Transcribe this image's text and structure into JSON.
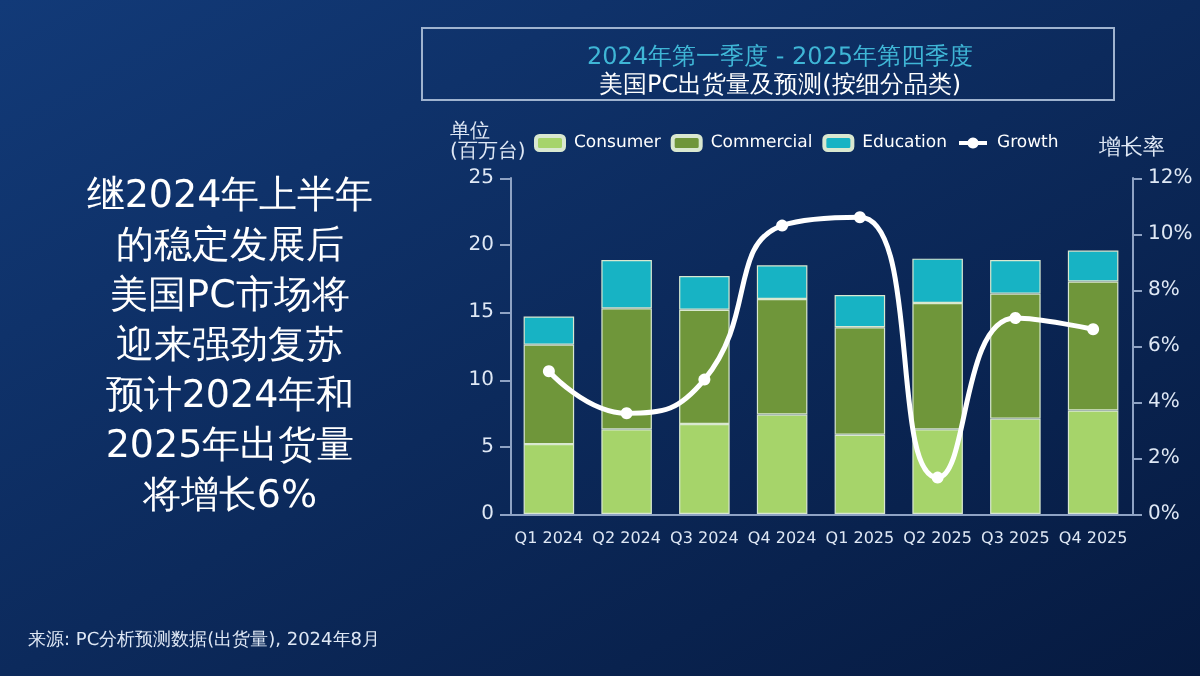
{
  "chart_data": {
    "type": "bar",
    "title": "2024年第一季度 - 2025年第四季度",
    "subtitle": "美国PC出货量及预测(按细分品类)",
    "ylabel": "单位\n(百万台)",
    "y2label": "增长率",
    "annotations": [
      "继2024年上半年",
      "的稳定发展后",
      "美国PC市场将",
      "迎来强劲复苏",
      "预计2024年和",
      "2025年出货量",
      "将增长6%",
      "来源: PC分析预测数据(出货量), 2024年8月"
    ],
    "categories": [
      "Q1 2024",
      "Q2 2024",
      "Q3 2024",
      "Q4 2024",
      "Q1 2025",
      "Q2 2025",
      "Q3 2025",
      "Q4 2025"
    ],
    "stacked": true,
    "series": [
      {
        "name": "Consumer",
        "color": "#a6d46a",
        "values": [
          5.2,
          6.3,
          6.7,
          7.4,
          5.9,
          6.3,
          7.1,
          7.7
        ]
      },
      {
        "name": "Commercial",
        "color": "#6f963a",
        "values": [
          7.4,
          9.0,
          8.5,
          8.6,
          8.0,
          9.4,
          9.3,
          9.6
        ]
      },
      {
        "name": "Education",
        "color": "#17b3c4",
        "values": [
          2.1,
          3.6,
          2.5,
          2.5,
          2.4,
          3.3,
          2.5,
          2.3
        ]
      },
      {
        "name": "Growth",
        "type": "line",
        "axis": "y2",
        "color": "#ffffff",
        "values": [
          5.1,
          3.6,
          4.8,
          10.3,
          10.6,
          1.3,
          7.0,
          6.6
        ]
      }
    ],
    "ylim": [
      0,
      25
    ],
    "yticks": [
      0,
      5,
      10,
      15,
      20,
      25
    ],
    "y2lim": [
      0,
      12
    ],
    "y2ticks": [
      {
        "value": 0,
        "label": "0%"
      },
      {
        "value": 2,
        "label": "2%"
      },
      {
        "value": 4,
        "label": "4%"
      },
      {
        "value": 6,
        "label": "6%"
      },
      {
        "value": 8,
        "label": "8%"
      },
      {
        "value": 10,
        "label": "10%"
      },
      {
        "value": 12,
        "label": "12%"
      }
    ],
    "legend": "top",
    "marker": "circle",
    "grid": false
  }
}
